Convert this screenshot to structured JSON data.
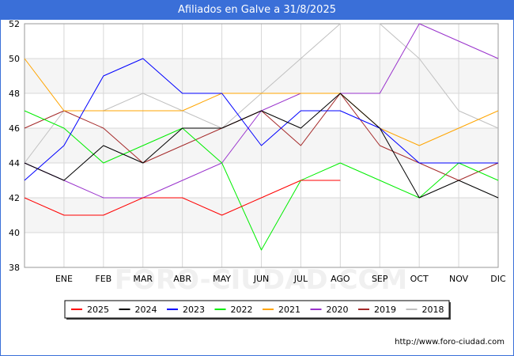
{
  "title": "Afiliados en Galve a 31/8/2025",
  "footer": "http://www.foro-ciudad.com",
  "watermark": "FORO-CIUDAD.COM",
  "chart_data": {
    "type": "line",
    "title": "Afiliados en Galve a 31/8/2025",
    "categories": [
      "",
      "ENE",
      "FEB",
      "MAR",
      "ABR",
      "MAY",
      "JUN",
      "JUL",
      "AGO",
      "SEP",
      "OCT",
      "NOV",
      "DIC"
    ],
    "ylim": [
      38,
      52
    ],
    "yticks": [
      38,
      40,
      42,
      44,
      46,
      48,
      50,
      52
    ],
    "grid": true,
    "legend_position": "bottom",
    "series": [
      {
        "name": "2018",
        "color": "#c0c0c0",
        "values": [
          44,
          47,
          47,
          48,
          47,
          46,
          48,
          50,
          52,
          52,
          50,
          47,
          46
        ]
      },
      {
        "name": "2019",
        "color": "#a52a2a",
        "values": [
          46,
          47,
          46,
          44,
          45,
          46,
          47,
          45,
          48,
          45,
          44,
          43,
          44
        ]
      },
      {
        "name": "2020",
        "color": "#9932cc",
        "values": [
          44,
          43,
          42,
          42,
          43,
          44,
          47,
          48,
          48,
          48,
          52,
          51,
          50
        ]
      },
      {
        "name": "2021",
        "color": "#ffa500",
        "values": [
          50,
          47,
          47,
          47,
          47,
          48,
          48,
          48,
          48,
          46,
          45,
          46,
          47
        ]
      },
      {
        "name": "2022",
        "color": "#00ee00",
        "values": [
          47,
          46,
          44,
          45,
          46,
          44,
          39,
          43,
          44,
          43,
          42,
          44,
          43
        ]
      },
      {
        "name": "2023",
        "color": "#0000ff",
        "values": [
          43,
          45,
          49,
          50,
          48,
          48,
          45,
          47,
          47,
          46,
          44,
          44,
          44
        ]
      },
      {
        "name": "2024",
        "color": "#000000",
        "values": [
          44,
          43,
          45,
          44,
          46,
          46,
          47,
          46,
          48,
          46,
          42,
          43,
          42
        ]
      },
      {
        "name": "2025",
        "color": "#ff0000",
        "values": [
          42,
          41,
          41,
          42,
          42,
          41,
          42,
          43,
          43,
          null,
          null,
          null,
          null
        ]
      }
    ],
    "legend_order": [
      "2025",
      "2024",
      "2023",
      "2022",
      "2021",
      "2020",
      "2019",
      "2018"
    ]
  }
}
